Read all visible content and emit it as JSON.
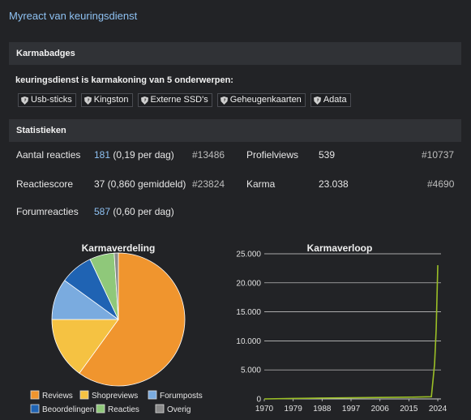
{
  "top_link": "Myreact van keuringsdienst",
  "karma_section": {
    "title": "Karmabadges",
    "text": "keuringsdienst is karmakoning van 5 onderwerpen:",
    "badges": [
      "Usb-sticks",
      "Kingston",
      "Externe SSD's",
      "Geheugenkaarten",
      "Adata"
    ]
  },
  "stats_section": {
    "title": "Statistieken",
    "rows": [
      {
        "label": "Aantal reacties",
        "value_link": "181",
        "value_rest": " (0,19 per dag)",
        "rank": "#13486"
      },
      {
        "label": "Reactiescore",
        "value_link": "",
        "value_rest": "37 (0,860 gemiddeld)",
        "rank": "#23824"
      },
      {
        "label": "Forumreacties",
        "value_link": "587",
        "value_rest": " (0,60 per dag)",
        "rank": ""
      }
    ],
    "right_rows": [
      {
        "label": "Profielviews",
        "value": "539",
        "rank": "#10737"
      },
      {
        "label": "Karma",
        "value": "23.038",
        "rank": "#4690"
      }
    ]
  },
  "chart_data": [
    {
      "type": "pie",
      "title": "Karmaverdeling",
      "categories": [
        "Reviews",
        "Shopreviews",
        "Forumposts",
        "Beoordelingen",
        "Reacties",
        "Overig"
      ],
      "values": [
        60,
        15,
        10,
        8,
        6,
        1
      ],
      "colors": [
        "#f0952e",
        "#f5c242",
        "#7aabdf",
        "#1f63b3",
        "#8fc87a",
        "#8a8a8a"
      ],
      "legend": "bottom"
    },
    {
      "type": "line",
      "title": "Karmaverloop",
      "x": [
        1970,
        1979,
        1988,
        1997,
        2006,
        2015,
        2022,
        2023,
        2023.5,
        2024
      ],
      "y": [
        0,
        80,
        150,
        200,
        250,
        300,
        380,
        6000,
        12000,
        23038
      ],
      "x_ticks": [
        "1970",
        "1979",
        "1988",
        "1997",
        "2006",
        "2015",
        "2024"
      ],
      "y_ticks": [
        "0",
        "5.000",
        "10.000",
        "15.000",
        "20.000",
        "25.000"
      ],
      "xlim": [
        1970,
        2025
      ],
      "ylim": [
        0,
        25000
      ],
      "grid": true,
      "line_color": "#9bbf26"
    }
  ]
}
